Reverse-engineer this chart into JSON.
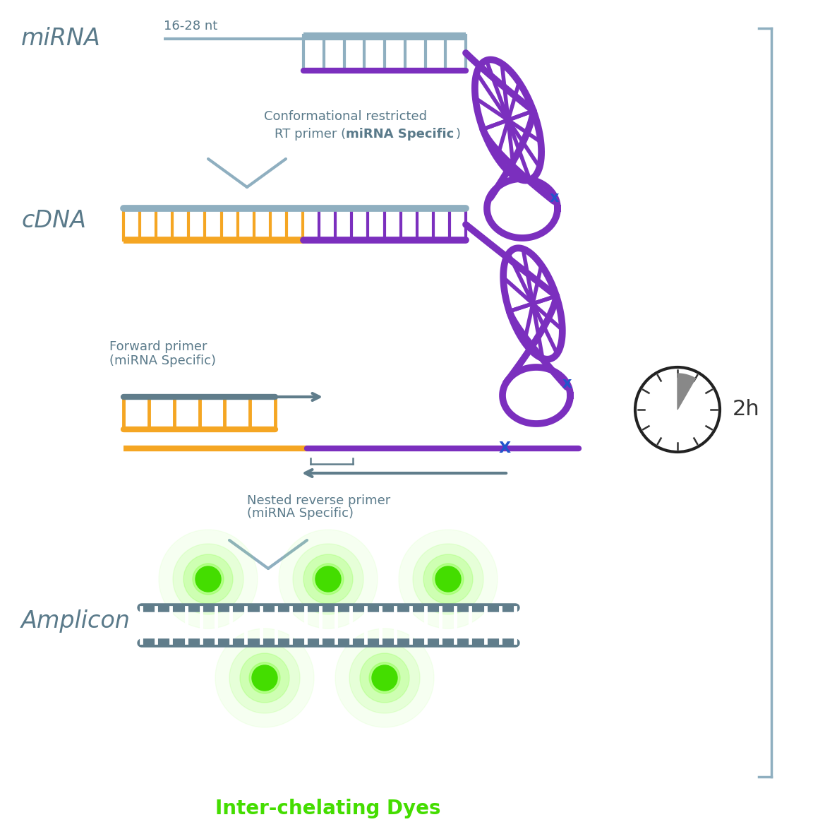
{
  "bg_color": "#ffffff",
  "label_color": "#5a7a8a",
  "title_mirna": "miRNA",
  "title_cdna": "cDNA",
  "title_amplicon": "Amplicon",
  "label_nt": "16-28 nt",
  "label_rt_primer_line1": "Conformational restricted",
  "label_rt_primer_line2": "RT primer ",
  "label_rt_bold": "miRNA Specific",
  "label_rt_paren_open": "(",
  "label_rt_paren_close": ")",
  "label_forward": "Forward primer\n(miRNA Specific)",
  "label_nested": "Nested reverse primer\n(miRNA Specific)",
  "label_dyes": "Inter-chelating Dyes",
  "label_2h": "2h",
  "orange_color": "#f5a623",
  "purple_color": "#7b2fbe",
  "gray_color": "#6b8fa3",
  "dark_gray": "#546e7a",
  "green_bright": "#44dd00",
  "green_glow": "#aaffaa",
  "bracket_color": "#8aaabb",
  "dna_gray": "#8fafc0",
  "dna_strand_gray": "#607d8b"
}
